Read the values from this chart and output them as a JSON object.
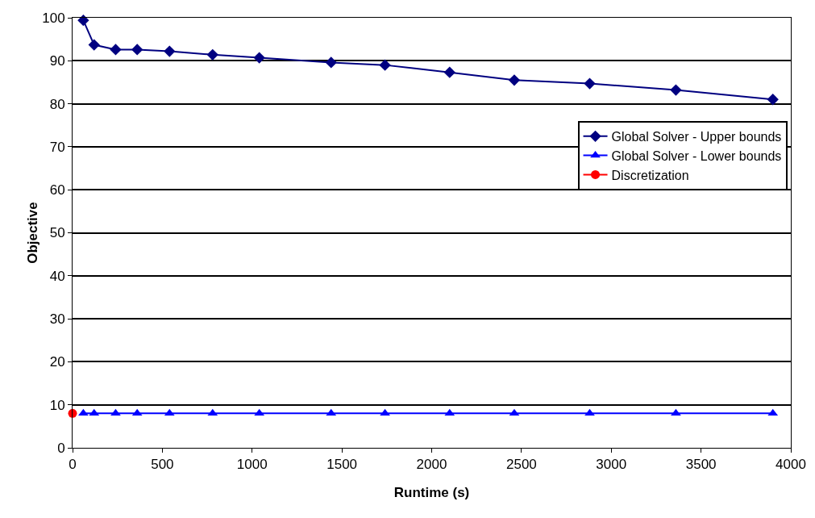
{
  "chart_data": {
    "type": "line",
    "xlabel": "Runtime (s)",
    "ylabel": "Objective",
    "xlim": [
      0,
      4000
    ],
    "xticks": [
      0,
      500,
      1000,
      1500,
      2000,
      2500,
      3000,
      3500,
      4000
    ],
    "ylim": [
      0,
      100
    ],
    "yticks": [
      0,
      10,
      20,
      30,
      40,
      50,
      60,
      70,
      80,
      90,
      100
    ],
    "grid": "y",
    "legend": "right",
    "line_style": "solid",
    "series": [
      {
        "name": "Global Solver - Upper bounds",
        "color": "#000080",
        "marker": "diamond",
        "x": [
          60,
          120,
          240,
          360,
          540,
          780,
          1040,
          1440,
          1740,
          2100,
          2460,
          2880,
          3360,
          3900
        ],
        "values": [
          99.4,
          93.7,
          92.6,
          92.6,
          92.2,
          91.4,
          90.7,
          89.6,
          89.0,
          87.3,
          85.5,
          84.7,
          83.2,
          81.0
        ]
      },
      {
        "name": "Global Solver - Lower bounds",
        "color": "#0000ff",
        "marker": "triangle",
        "x": [
          60,
          120,
          240,
          360,
          540,
          780,
          1040,
          1440,
          1740,
          2100,
          2460,
          2880,
          3360,
          3900
        ],
        "values": [
          8,
          8,
          8,
          8,
          8,
          8,
          8,
          8,
          8,
          8,
          8,
          8,
          8,
          8
        ]
      },
      {
        "name": "Discretization",
        "color": "#ff0000",
        "marker": "circle",
        "x": [
          0
        ],
        "values": [
          8
        ]
      }
    ]
  }
}
